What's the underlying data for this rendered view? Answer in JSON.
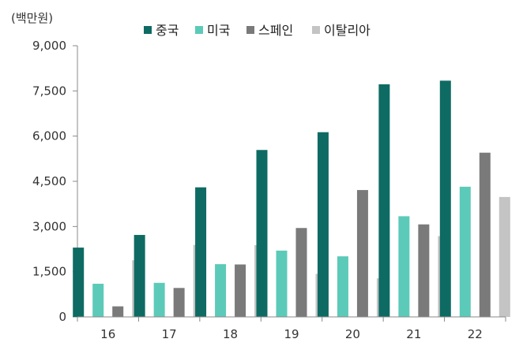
{
  "chart_data": {
    "type": "bar",
    "unit_label": "(백만원)",
    "categories": [
      "16",
      "17",
      "18",
      "19",
      "20",
      "21",
      "22"
    ],
    "series": [
      {
        "name": "중국",
        "color": "#0e6b63",
        "values": [
          2300,
          2720,
          4300,
          5540,
          6130,
          7720,
          7840
        ]
      },
      {
        "name": "미국",
        "color": "#5ccab8",
        "values": [
          1100,
          1130,
          1750,
          2200,
          2010,
          3340,
          4320
        ]
      },
      {
        "name": "스페인",
        "color": "#7a7a7a",
        "values": [
          350,
          960,
          1740,
          2950,
          4210,
          3070,
          5450
        ]
      },
      {
        "name": "이탈리아",
        "color": "#c4c4c4",
        "values": [
          1880,
          2390,
          2380,
          1430,
          1280,
          2680,
          3980
        ]
      }
    ],
    "ylim": [
      0,
      9000
    ],
    "yticks": [
      "0",
      "1,500",
      "3,000",
      "4,500",
      "6,000",
      "7,500",
      "9,000"
    ],
    "ytick_values": [
      0,
      1500,
      3000,
      4500,
      6000,
      7500,
      9000
    ],
    "grid": false,
    "legend_position": "top"
  }
}
